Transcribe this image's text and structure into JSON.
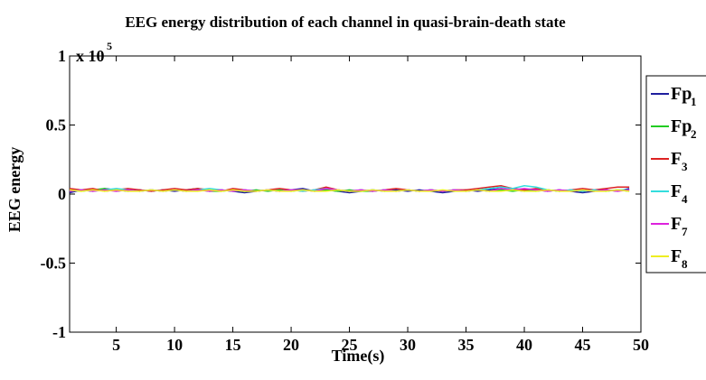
{
  "chart_data": {
    "type": "line",
    "title": "EEG energy distribution of each channel in quasi-brain-death state",
    "xlabel": "Time(s)",
    "ylabel": "EEG energy",
    "y_multiplier": "x 10",
    "y_multiplier_exponent": "5",
    "xlim": [
      1,
      50
    ],
    "ylim": [
      -1,
      1
    ],
    "x_ticks": [
      5,
      10,
      15,
      20,
      25,
      30,
      35,
      40,
      45,
      50
    ],
    "y_ticks": [
      -1,
      -0.5,
      0,
      0.5,
      1
    ],
    "x_tick_labels": [
      "5",
      "10",
      "15",
      "20",
      "25",
      "30",
      "35",
      "40",
      "45",
      "50"
    ],
    "y_tick_labels": [
      "-1",
      "-0.5",
      "0",
      "0.5",
      "1"
    ],
    "grid": false,
    "legend_position": "right",
    "x": [
      1,
      2,
      3,
      4,
      5,
      6,
      7,
      8,
      9,
      10,
      11,
      12,
      13,
      14,
      15,
      16,
      17,
      18,
      19,
      20,
      21,
      22,
      23,
      24,
      25,
      26,
      27,
      28,
      29,
      30,
      31,
      32,
      33,
      34,
      35,
      36,
      37,
      38,
      39,
      40,
      41,
      42,
      43,
      44,
      45,
      46,
      47,
      48,
      49
    ],
    "series": [
      {
        "name": "Fp",
        "subscript": "1",
        "color": "#1f1f9e",
        "values": [
          0.01,
          0.03,
          0.02,
          0.04,
          0.03,
          0.02,
          0.03,
          0.02,
          0.03,
          0.02,
          0.03,
          0.04,
          0.02,
          0.03,
          0.02,
          0.01,
          0.02,
          0.03,
          0.02,
          0.03,
          0.04,
          0.02,
          0.03,
          0.02,
          0.01,
          0.02,
          0.03,
          0.02,
          0.03,
          0.02,
          0.03,
          0.02,
          0.01,
          0.02,
          0.03,
          0.02,
          0.03,
          0.04,
          0.03,
          0.02,
          0.03,
          0.02,
          0.03,
          0.02,
          0.01,
          0.02,
          0.03,
          0.02,
          0.04
        ]
      },
      {
        "name": "Fp",
        "subscript": "2",
        "color": "#22cc22",
        "values": [
          0.03,
          0.02,
          0.03,
          0.04,
          0.02,
          0.03,
          0.02,
          0.03,
          0.02,
          0.03,
          0.02,
          0.03,
          0.02,
          0.02,
          0.03,
          0.02,
          0.03,
          0.02,
          0.03,
          0.02,
          0.03,
          0.02,
          0.03,
          0.02,
          0.03,
          0.02,
          0.02,
          0.03,
          0.02,
          0.03,
          0.02,
          0.03,
          0.02,
          0.03,
          0.02,
          0.03,
          0.02,
          0.03,
          0.02,
          0.03,
          0.02,
          0.03,
          0.02,
          0.03,
          0.02,
          0.03,
          0.02,
          0.03,
          0.02
        ]
      },
      {
        "name": "F",
        "subscript": "3",
        "color": "#dd2222",
        "values": [
          0.04,
          0.03,
          0.04,
          0.02,
          0.03,
          0.04,
          0.03,
          0.02,
          0.03,
          0.04,
          0.03,
          0.04,
          0.03,
          0.02,
          0.04,
          0.03,
          0.02,
          0.03,
          0.04,
          0.03,
          0.02,
          0.03,
          0.05,
          0.03,
          0.02,
          0.03,
          0.02,
          0.03,
          0.04,
          0.03,
          0.02,
          0.03,
          0.02,
          0.03,
          0.03,
          0.04,
          0.05,
          0.06,
          0.04,
          0.03,
          0.04,
          0.03,
          0.02,
          0.03,
          0.04,
          0.03,
          0.04,
          0.05,
          0.05
        ]
      },
      {
        "name": "F",
        "subscript": "4",
        "color": "#33dddd",
        "values": [
          0.02,
          0.03,
          0.02,
          0.03,
          0.04,
          0.03,
          0.02,
          0.03,
          0.02,
          0.03,
          0.02,
          0.03,
          0.04,
          0.03,
          0.02,
          0.03,
          0.02,
          0.03,
          0.02,
          0.03,
          0.02,
          0.03,
          0.04,
          0.03,
          0.02,
          0.03,
          0.02,
          0.03,
          0.02,
          0.03,
          0.02,
          0.03,
          0.02,
          0.03,
          0.02,
          0.03,
          0.04,
          0.05,
          0.04,
          0.06,
          0.05,
          0.03,
          0.02,
          0.03,
          0.02,
          0.03,
          0.02,
          0.03,
          0.03
        ]
      },
      {
        "name": "F",
        "subscript": "7",
        "color": "#dd22dd",
        "values": [
          0.02,
          0.03,
          0.02,
          0.03,
          0.02,
          0.03,
          0.02,
          0.03,
          0.02,
          0.03,
          0.02,
          0.03,
          0.02,
          0.03,
          0.02,
          0.03,
          0.02,
          0.03,
          0.02,
          0.03,
          0.03,
          0.02,
          0.04,
          0.03,
          0.02,
          0.03,
          0.02,
          0.03,
          0.02,
          0.03,
          0.02,
          0.03,
          0.02,
          0.03,
          0.02,
          0.03,
          0.02,
          0.04,
          0.03,
          0.04,
          0.03,
          0.02,
          0.03,
          0.02,
          0.03,
          0.02,
          0.03,
          0.02,
          0.03
        ]
      },
      {
        "name": "F",
        "subscript": "8",
        "color": "#eeee22",
        "values": [
          0.03,
          0.02,
          0.03,
          0.02,
          0.03,
          0.02,
          0.02,
          0.03,
          0.02,
          0.03,
          0.02,
          0.02,
          0.03,
          0.02,
          0.03,
          0.02,
          0.02,
          0.03,
          0.02,
          0.02,
          0.03,
          0.02,
          0.02,
          0.03,
          0.02,
          0.02,
          0.03,
          0.02,
          0.02,
          0.03,
          0.02,
          0.02,
          0.03,
          0.02,
          0.02,
          0.03,
          0.02,
          0.02,
          0.03,
          0.02,
          0.02,
          0.03,
          0.02,
          0.02,
          0.03,
          0.02,
          0.02,
          0.03,
          0.02
        ]
      }
    ]
  }
}
